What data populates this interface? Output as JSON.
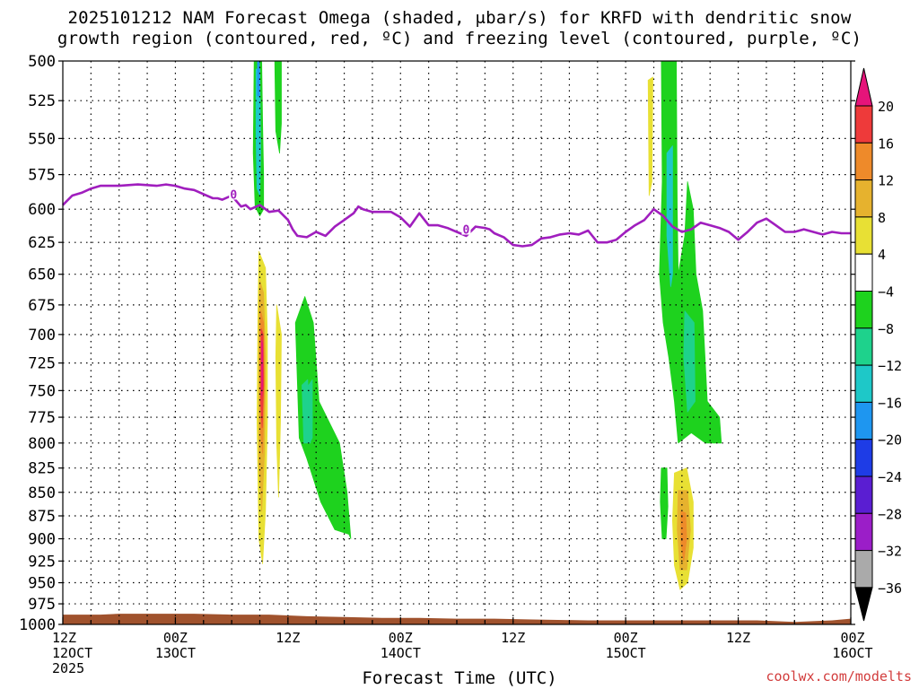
{
  "header": {
    "title_line1": "2025101212 NAM Forecast Omega (shaded, μbar/s) for KRFD with dendritic snow",
    "title_line2": "growth region (contoured, red, ºC) and freezing level (contoured, purple, ºC)"
  },
  "footer": {
    "credit": "coolwx.com/modelts"
  },
  "chart_data": {
    "type": "heatmap",
    "xlabel": "Forecast Time (UTC)",
    "ylabel": "",
    "x_unit": "hours",
    "xlim": [
      0,
      84
    ],
    "ylim": [
      1000,
      500
    ],
    "y_ticks": [
      500,
      525,
      550,
      575,
      600,
      625,
      650,
      675,
      700,
      725,
      750,
      775,
      800,
      825,
      850,
      875,
      900,
      925,
      950,
      975,
      1000
    ],
    "x_ticks": [
      {
        "x": 0,
        "lines": [
          "12Z",
          "12OCT",
          "2025"
        ]
      },
      {
        "x": 12,
        "lines": [
          "00Z",
          "13OCT"
        ]
      },
      {
        "x": 24,
        "lines": [
          "12Z"
        ]
      },
      {
        "x": 36,
        "lines": [
          "00Z",
          "14OCT"
        ]
      },
      {
        "x": 48,
        "lines": [
          "12Z"
        ]
      },
      {
        "x": 60,
        "lines": [
          "00Z",
          "15OCT"
        ]
      },
      {
        "x": 72,
        "lines": [
          "12Z"
        ]
      },
      {
        "x": 84,
        "lines": [
          "00Z",
          "16OCT"
        ]
      }
    ],
    "grid": true,
    "colorbar": {
      "labels": [
        "20",
        "16",
        "12",
        "8",
        "4",
        "−4",
        "−8",
        "−12",
        "−16",
        "−20",
        "−24",
        "−28",
        "−32",
        "−36"
      ],
      "bands": [
        {
          "from": 16,
          "to": 20,
          "color": "#ee3a3a"
        },
        {
          "from": 12,
          "to": 16,
          "color": "#ee8a2a"
        },
        {
          "from": 8,
          "to": 12,
          "color": "#e6b22e"
        },
        {
          "from": 4,
          "to": 8,
          "color": "#e8e034"
        },
        {
          "from": -4,
          "to": 4,
          "color": "#ffffff"
        },
        {
          "from": -8,
          "to": -4,
          "color": "#1ed21e"
        },
        {
          "from": -12,
          "to": -8,
          "color": "#1ed28c"
        },
        {
          "from": -16,
          "to": -12,
          "color": "#1ec8c8"
        },
        {
          "from": -20,
          "to": -16,
          "color": "#1e96f0"
        },
        {
          "from": -24,
          "to": -20,
          "color": "#1e3ce6"
        },
        {
          "from": -28,
          "to": -24,
          "color": "#5a1ed2"
        },
        {
          "from": -32,
          "to": -28,
          "color": "#9b1ec8"
        },
        {
          "from": -36,
          "to": -32,
          "color": "#aaaaaa"
        }
      ],
      "top_arrow_color": "#e6147a",
      "bottom_arrow_color": "#000000"
    },
    "omega_regions": [
      {
        "color": "#1ed21e",
        "points": [
          [
            20.4,
            500
          ],
          [
            21.2,
            500
          ],
          [
            21.3,
            540
          ],
          [
            21.4,
            575
          ],
          [
            21.4,
            600
          ],
          [
            21.0,
            605
          ],
          [
            20.5,
            598
          ],
          [
            20.3,
            560
          ]
        ]
      },
      {
        "color": "#1ec8c8",
        "points": [
          [
            20.6,
            505
          ],
          [
            21.0,
            505
          ],
          [
            21.1,
            560
          ],
          [
            21.0,
            590
          ],
          [
            20.7,
            585
          ],
          [
            20.6,
            550
          ]
        ]
      },
      {
        "color": "#1e96f0",
        "points": [
          [
            20.75,
            500
          ],
          [
            20.95,
            500
          ],
          [
            20.95,
            522
          ],
          [
            20.75,
            522
          ]
        ]
      },
      {
        "color": "#1ed21e",
        "points": [
          [
            22.6,
            500
          ],
          [
            23.3,
            500
          ],
          [
            23.3,
            540
          ],
          [
            23.1,
            560
          ],
          [
            22.7,
            545
          ]
        ]
      },
      {
        "color": "#e8e034",
        "points": [
          [
            20.9,
            632
          ],
          [
            21.6,
            645
          ],
          [
            21.8,
            700
          ],
          [
            21.8,
            780
          ],
          [
            21.6,
            870
          ],
          [
            21.3,
            928
          ],
          [
            20.9,
            900
          ],
          [
            20.7,
            780
          ],
          [
            20.8,
            680
          ]
        ]
      },
      {
        "color": "#e6b22e",
        "points": [
          [
            21.0,
            655
          ],
          [
            21.4,
            665
          ],
          [
            21.6,
            720
          ],
          [
            21.5,
            810
          ],
          [
            21.2,
            870
          ],
          [
            20.9,
            820
          ],
          [
            20.9,
            690
          ]
        ]
      },
      {
        "color": "#ee8a2a",
        "points": [
          [
            21.1,
            680
          ],
          [
            21.4,
            690
          ],
          [
            21.5,
            740
          ],
          [
            21.3,
            810
          ],
          [
            21.1,
            790
          ],
          [
            21.0,
            720
          ]
        ]
      },
      {
        "color": "#ee3a3a",
        "points": [
          [
            21.15,
            695
          ],
          [
            21.35,
            700
          ],
          [
            21.4,
            745
          ],
          [
            21.25,
            785
          ],
          [
            21.1,
            760
          ]
        ]
      },
      {
        "color": "#e6147a",
        "points": [
          [
            21.2,
            705
          ],
          [
            21.3,
            708
          ],
          [
            21.3,
            745
          ],
          [
            21.2,
            755
          ]
        ]
      },
      {
        "color": "#e8e034",
        "points": [
          [
            22.8,
            675
          ],
          [
            23.3,
            700
          ],
          [
            23.2,
            780
          ],
          [
            23.0,
            855
          ],
          [
            22.8,
            800
          ],
          [
            22.7,
            720
          ]
        ]
      },
      {
        "color": "#1ed21e",
        "points": [
          [
            24.8,
            690
          ],
          [
            25.8,
            668
          ],
          [
            26.7,
            690
          ],
          [
            27.3,
            760
          ],
          [
            29.5,
            800
          ],
          [
            30.3,
            850
          ],
          [
            30.7,
            900
          ],
          [
            30.5,
            895
          ],
          [
            29.0,
            890
          ],
          [
            27.5,
            860
          ],
          [
            26.0,
            815
          ],
          [
            25.2,
            795
          ],
          [
            25.0,
            740
          ]
        ]
      },
      {
        "color": "#1ed28c",
        "points": [
          [
            25.5,
            745
          ],
          [
            26.1,
            740
          ],
          [
            26.4,
            800
          ],
          [
            25.7,
            800
          ]
        ]
      },
      {
        "color": "#1ed28c",
        "points": [
          [
            26.2,
            745
          ],
          [
            26.6,
            740
          ],
          [
            26.6,
            795
          ],
          [
            26.3,
            800
          ]
        ]
      },
      {
        "color": "#e8e034",
        "points": [
          [
            62.4,
            512
          ],
          [
            62.9,
            510
          ],
          [
            62.8,
            580
          ],
          [
            62.5,
            590
          ]
        ]
      },
      {
        "color": "#1ed21e",
        "points": [
          [
            63.8,
            500
          ],
          [
            65.4,
            500
          ],
          [
            65.5,
            600
          ],
          [
            65.6,
            650
          ],
          [
            66.3,
            620
          ],
          [
            66.6,
            580
          ],
          [
            67.2,
            600
          ],
          [
            67.5,
            650
          ],
          [
            68.2,
            680
          ],
          [
            68.7,
            760
          ],
          [
            70.0,
            775
          ],
          [
            70.2,
            800
          ],
          [
            68.5,
            800
          ],
          [
            67.0,
            790
          ],
          [
            65.6,
            800
          ],
          [
            65.2,
            760
          ],
          [
            64.6,
            720
          ],
          [
            64.0,
            690
          ],
          [
            63.6,
            650
          ],
          [
            63.9,
            580
          ]
        ]
      },
      {
        "color": "#1ec8c8",
        "points": [
          [
            64.4,
            560
          ],
          [
            65.0,
            555
          ],
          [
            65.0,
            650
          ],
          [
            64.8,
            660
          ],
          [
            64.4,
            620
          ]
        ]
      },
      {
        "color": "#1ed28c",
        "points": [
          [
            66.3,
            680
          ],
          [
            67.3,
            690
          ],
          [
            67.4,
            760
          ],
          [
            66.6,
            770
          ],
          [
            66.2,
            720
          ]
        ]
      },
      {
        "color": "#1ed21e",
        "points": [
          [
            63.8,
            825
          ],
          [
            64.4,
            825
          ],
          [
            64.5,
            865
          ],
          [
            64.3,
            900
          ],
          [
            63.9,
            900
          ],
          [
            63.7,
            860
          ]
        ]
      },
      {
        "color": "#e8e034",
        "points": [
          [
            65.2,
            830
          ],
          [
            66.5,
            825
          ],
          [
            67.2,
            860
          ],
          [
            67.2,
            910
          ],
          [
            66.6,
            950
          ],
          [
            65.8,
            958
          ],
          [
            65.2,
            930
          ],
          [
            65.0,
            880
          ]
        ]
      },
      {
        "color": "#e6b22e",
        "points": [
          [
            65.6,
            848
          ],
          [
            66.6,
            848
          ],
          [
            66.9,
            890
          ],
          [
            66.5,
            935
          ],
          [
            65.8,
            935
          ],
          [
            65.5,
            890
          ]
        ]
      },
      {
        "color": "#ee8a2a",
        "points": [
          [
            65.9,
            870
          ],
          [
            66.4,
            872
          ],
          [
            66.5,
            900
          ],
          [
            66.2,
            925
          ],
          [
            65.9,
            905
          ]
        ]
      }
    ],
    "freezing_level": {
      "color": "#a01ebe",
      "label": "0",
      "points": [
        [
          0,
          597
        ],
        [
          1,
          590
        ],
        [
          2,
          588
        ],
        [
          3,
          585
        ],
        [
          4,
          583
        ],
        [
          6,
          583
        ],
        [
          8,
          582
        ],
        [
          10,
          583
        ],
        [
          11,
          582
        ],
        [
          12,
          583
        ],
        [
          13,
          585
        ],
        [
          14,
          586
        ],
        [
          15,
          589
        ],
        [
          16,
          592
        ],
        [
          16.5,
          592
        ],
        [
          17,
          593
        ],
        [
          18,
          590
        ],
        [
          19,
          598
        ],
        [
          19.5,
          597
        ],
        [
          20,
          600
        ],
        [
          21,
          597
        ],
        [
          22,
          602
        ],
        [
          23,
          601
        ],
        [
          24,
          608
        ],
        [
          24.5,
          615
        ],
        [
          25,
          620
        ],
        [
          26,
          621
        ],
        [
          27,
          617
        ],
        [
          28,
          620
        ],
        [
          29,
          613
        ],
        [
          30,
          608
        ],
        [
          31,
          603
        ],
        [
          31.5,
          598
        ],
        [
          32,
          600
        ],
        [
          33,
          602
        ],
        [
          34,
          602
        ],
        [
          35,
          602
        ],
        [
          36,
          606
        ],
        [
          37,
          613
        ],
        [
          38,
          603
        ],
        [
          39,
          612
        ],
        [
          40,
          612
        ],
        [
          41,
          614
        ],
        [
          42,
          617
        ],
        [
          43,
          620
        ],
        [
          44,
          613
        ],
        [
          45,
          614
        ],
        [
          45.5,
          615
        ],
        [
          46,
          618
        ],
        [
          47,
          621
        ],
        [
          48,
          627
        ],
        [
          49,
          628
        ],
        [
          50,
          627
        ],
        [
          51,
          622
        ],
        [
          52,
          621
        ],
        [
          53,
          619
        ],
        [
          54,
          618
        ],
        [
          55,
          619
        ],
        [
          56,
          616
        ],
        [
          57,
          625
        ],
        [
          58,
          625
        ],
        [
          59,
          623
        ],
        [
          60,
          617
        ],
        [
          61,
          612
        ],
        [
          62,
          608
        ],
        [
          63,
          600
        ],
        [
          64,
          605
        ],
        [
          65,
          613
        ],
        [
          66,
          617
        ],
        [
          67,
          615
        ],
        [
          68,
          610
        ],
        [
          69,
          612
        ],
        [
          70,
          614
        ],
        [
          71,
          617
        ],
        [
          72,
          623
        ],
        [
          73,
          617
        ],
        [
          74,
          610
        ],
        [
          75,
          607
        ],
        [
          76,
          612
        ],
        [
          77,
          617
        ],
        [
          78,
          617
        ],
        [
          79,
          615
        ],
        [
          80,
          617
        ],
        [
          81,
          619
        ],
        [
          82,
          617
        ],
        [
          83,
          618
        ],
        [
          84,
          618
        ]
      ],
      "label_points": [
        [
          18.2,
          589
        ],
        [
          43,
          615
        ]
      ]
    },
    "terrain_top": {
      "color": "#a0522d",
      "points": [
        [
          0,
          988
        ],
        [
          4,
          988
        ],
        [
          6,
          987
        ],
        [
          10,
          987
        ],
        [
          14,
          987
        ],
        [
          18,
          988
        ],
        [
          22,
          988
        ],
        [
          26,
          990
        ],
        [
          30,
          991
        ],
        [
          34,
          992
        ],
        [
          38,
          992
        ],
        [
          42,
          993
        ],
        [
          46,
          993
        ],
        [
          50,
          994
        ],
        [
          56,
          995
        ],
        [
          60,
          995
        ],
        [
          64,
          995
        ],
        [
          70,
          995
        ],
        [
          74,
          995
        ],
        [
          76,
          996
        ],
        [
          78,
          997
        ],
        [
          80,
          996
        ],
        [
          82,
          995
        ],
        [
          84,
          993
        ]
      ]
    }
  }
}
